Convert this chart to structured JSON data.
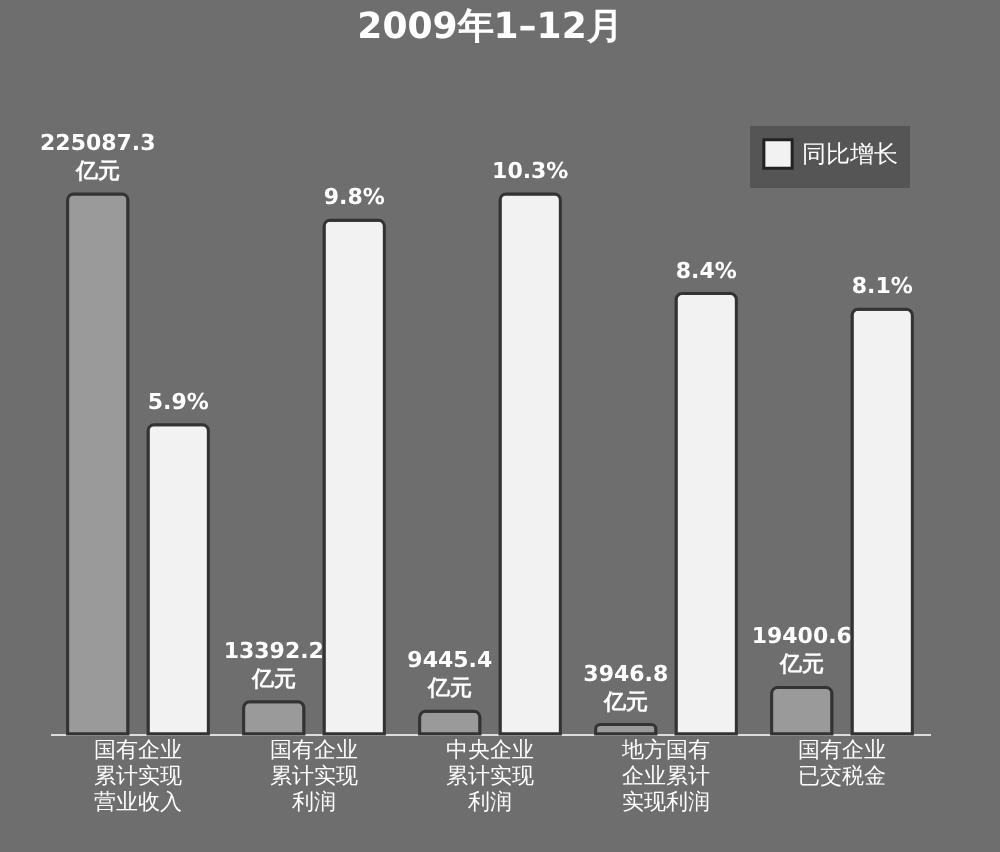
{
  "chart_data": {
    "type": "bar",
    "title": "2009年1–12月",
    "categories": [
      "国有企业累计实现营业收入",
      "国有企业累计实现利润",
      "中央企业累计实现利润",
      "地方国有企业累计实现利润",
      "国有企业已交税金"
    ],
    "series": [
      {
        "color": "#9a9a9a",
        "values": [
          225087.3,
          13392.2,
          9445.4,
          3946.8,
          19400.6
        ],
        "value_labels": [
          "225087.3 亿元",
          "13392.2 亿元",
          "9445.4 亿元",
          "3946.8 亿元",
          "19400.6 亿元"
        ]
      },
      {
        "name": "同比增长",
        "color": "#f2f2f2",
        "axis": "y2",
        "values": [
          5.9,
          9.8,
          10.3,
          8.4,
          8.1
        ],
        "value_labels": [
          "5.9%",
          "9.8%",
          "10.3%",
          "8.4%",
          "8.1%"
        ]
      }
    ],
    "tick_labels": "x",
    "legend": "top right"
  }
}
